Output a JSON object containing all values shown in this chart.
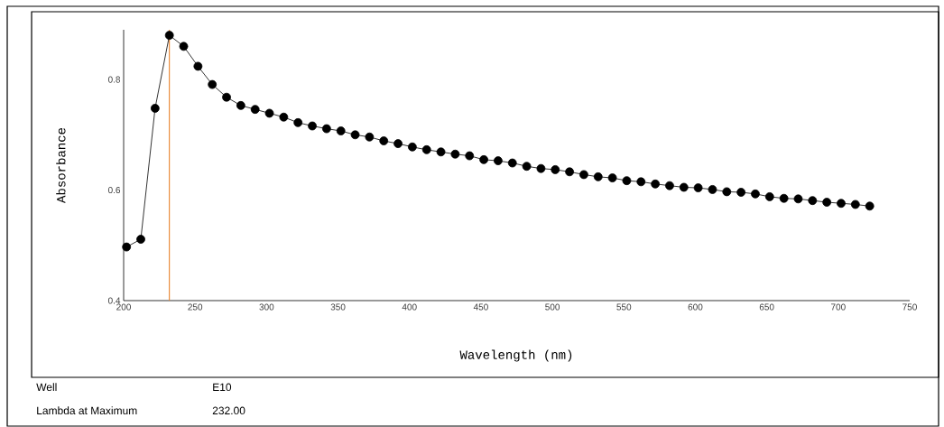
{
  "chart_data": {
    "type": "line",
    "xlabel": "Wavelength (nm)",
    "ylabel": "Absorbance",
    "x": [
      202,
      212,
      222,
      232,
      242,
      252,
      262,
      272,
      282,
      292,
      302,
      312,
      322,
      332,
      342,
      352,
      362,
      372,
      382,
      392,
      402,
      412,
      422,
      432,
      442,
      452,
      462,
      472,
      482,
      492,
      502,
      512,
      522,
      532,
      542,
      552,
      562,
      572,
      582,
      592,
      602,
      612,
      622,
      632,
      642,
      652,
      662,
      672,
      682,
      692,
      702,
      712,
      722
    ],
    "series": [
      {
        "color": "#000000",
        "values": [
          0.497,
          0.511,
          0.748,
          0.88,
          0.86,
          0.824,
          0.791,
          0.768,
          0.753,
          0.746,
          0.739,
          0.732,
          0.722,
          0.716,
          0.711,
          0.707,
          0.7,
          0.696,
          0.689,
          0.684,
          0.678,
          0.673,
          0.669,
          0.665,
          0.662,
          0.655,
          0.653,
          0.649,
          0.643,
          0.639,
          0.637,
          0.633,
          0.628,
          0.624,
          0.622,
          0.617,
          0.615,
          0.611,
          0.608,
          0.605,
          0.604,
          0.601,
          0.597,
          0.596,
          0.593,
          0.588,
          0.585,
          0.584,
          0.581,
          0.578,
          0.576,
          0.574,
          0.571
        ]
      }
    ],
    "xlim": [
      200,
      750
    ],
    "ylim": [
      0.4,
      0.89
    ],
    "xticks": [
      200,
      250,
      300,
      350,
      400,
      450,
      500,
      550,
      600,
      650,
      700,
      750
    ],
    "yticks": [
      0.4,
      0.6,
      0.8
    ],
    "marker": "circle",
    "line_style": "solid",
    "grid": false,
    "ref_lines": [
      {
        "axis": "x",
        "value": 232,
        "color": "#e8852f"
      }
    ],
    "annotations": [
      "Well",
      "E10",
      "Lambda at Maximum",
      "232.00"
    ]
  }
}
